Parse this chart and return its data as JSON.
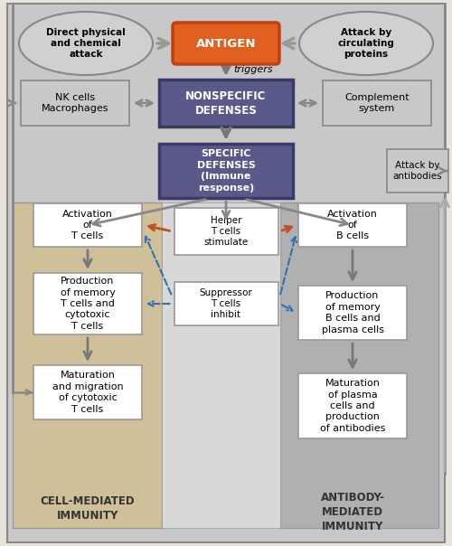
{
  "fig_width": 5.0,
  "fig_height": 6.04,
  "bg_color": "#e8e4dc",
  "title_cell_mediated": "CELL-MEDIATED\nIMMUNITY",
  "title_antibody": "ANTIBODY-\nMEDIATED\nIMMUNITY",
  "antigen_text": "ANTIGEN",
  "triggers_text": "triggers",
  "nonspecific_text": "NONSPECIFIC\nDEFENSES",
  "specific_text": "SPECIFIC\nDEFENSES\n(Immune\nresponse)",
  "nk_cells_text": "NK cells\nMacrophages",
  "complement_text": "Complement\nsystem",
  "direct_attack_text": "Direct physical\nand chemical\nattack",
  "circulating_text": "Attack by\ncirculating\nproteins",
  "attack_antibodies_text": "Attack by\nantibodies",
  "helper_text": "Helper\nT cells\nstimulate",
  "suppressor_text": "Suppressor\nT cells\ninhibit",
  "activation_t_text": "Activation\nof\nT cells",
  "production_t_text": "Production\nof memory\nT cells and\ncytotoxic\nT cells",
  "maturation_t_text": "Maturation\nand migration\nof cytotoxic\nT cells",
  "activation_b_text": "Activation\nof\nB cells",
  "production_b_text": "Production\nof memory\nB cells and\nplasma cells",
  "maturation_b_text": "Maturation\nof plasma\ncells and\nproduction\nof antibodies",
  "purple_box_color": "#5a5a8a",
  "purple_box_edge": "#3a3a6a",
  "white_box_color": "#ffffff",
  "white_box_edge": "#888888",
  "nk_box_color": "#c8c8c8",
  "nk_box_edge": "#888888",
  "cell_mediated_bg": "#cfc09a",
  "antibody_bg": "#b0b0b0",
  "antigen_fill": "#e06020",
  "antigen_edge": "#c04010",
  "ellipse_fill": "#d0d0d0",
  "ellipse_edge": "#888888",
  "arrow_gray": "#888888",
  "orange_arrow": "#c05020",
  "blue_dashed": "#3070b0",
  "outer_bg": "#c8c8c8"
}
